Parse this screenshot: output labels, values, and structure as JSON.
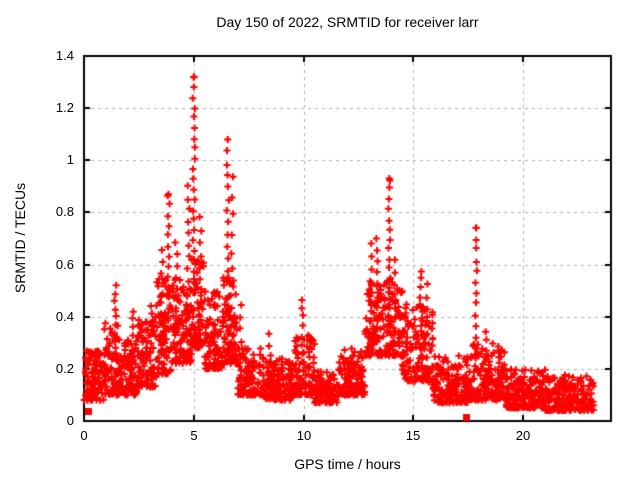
{
  "chart_data": {
    "type": "scatter",
    "title": "Day 150 of 2022, SRMTID for receiver larr",
    "xlabel": "GPS time / hours",
    "ylabel": "SRMTID / TECUs",
    "xlim": [
      0,
      24
    ],
    "ylim": [
      0,
      1.4
    ],
    "x_tick_values": [
      0,
      5,
      10,
      15,
      20
    ],
    "x_tick_labels": [
      "0",
      "5",
      "10",
      "15",
      "20"
    ],
    "y_tick_values": [
      0,
      0.2,
      0.4,
      0.6,
      0.8,
      1,
      1.2,
      1.4
    ],
    "y_tick_labels": [
      "0",
      "0.2",
      "0.4",
      "0.6",
      "0.8",
      "1",
      "1.2",
      "1.4"
    ],
    "grid": true,
    "legend": "none",
    "marker": "plus",
    "marker_color": "#ff0000",
    "grid_color": "#b0b0b0",
    "axis_color": "#000000",
    "background_color": "#ffffff",
    "seed": 7,
    "band_segments_format": "[x_start_hours, x_end_hours, y_low_TECUs, y_high_TECUs, n_points]",
    "band_segments": [
      [
        0.0,
        0.9,
        0.08,
        0.27,
        110
      ],
      [
        0.9,
        1.6,
        0.1,
        0.38,
        80
      ],
      [
        1.6,
        2.4,
        0.1,
        0.32,
        90
      ],
      [
        2.4,
        3.3,
        0.13,
        0.4,
        100
      ],
      [
        3.3,
        4.0,
        0.18,
        0.55,
        80
      ],
      [
        4.0,
        4.9,
        0.22,
        0.55,
        100
      ],
      [
        4.9,
        5.5,
        0.28,
        0.65,
        70
      ],
      [
        5.5,
        6.3,
        0.2,
        0.5,
        90
      ],
      [
        6.3,
        7.0,
        0.22,
        0.55,
        80
      ],
      [
        7.0,
        8.2,
        0.1,
        0.28,
        120
      ],
      [
        8.2,
        9.6,
        0.08,
        0.24,
        140
      ],
      [
        9.6,
        10.5,
        0.1,
        0.33,
        90
      ],
      [
        10.5,
        11.6,
        0.07,
        0.19,
        110
      ],
      [
        11.6,
        12.8,
        0.1,
        0.28,
        120
      ],
      [
        12.8,
        13.8,
        0.25,
        0.55,
        100
      ],
      [
        13.8,
        14.5,
        0.25,
        0.55,
        70
      ],
      [
        14.5,
        15.9,
        0.15,
        0.45,
        140
      ],
      [
        15.9,
        17.5,
        0.07,
        0.26,
        160
      ],
      [
        17.5,
        19.2,
        0.08,
        0.3,
        170
      ],
      [
        19.2,
        21.0,
        0.05,
        0.2,
        180
      ],
      [
        21.0,
        23.2,
        0.04,
        0.18,
        220
      ]
    ],
    "spike_columns_format": "[x_hours, y_base_TECUs, y_top_TECUs, n_points]",
    "spike_columns": [
      [
        1.42,
        0.25,
        0.52,
        10
      ],
      [
        2.2,
        0.2,
        0.42,
        8
      ],
      [
        3.05,
        0.2,
        0.44,
        8
      ],
      [
        3.55,
        0.3,
        0.65,
        10
      ],
      [
        3.85,
        0.35,
        0.87,
        14
      ],
      [
        4.2,
        0.3,
        0.68,
        10
      ],
      [
        4.75,
        0.4,
        0.9,
        12
      ],
      [
        5.0,
        0.5,
        1.32,
        22
      ],
      [
        5.3,
        0.35,
        0.78,
        10
      ],
      [
        6.55,
        0.3,
        1.08,
        18
      ],
      [
        6.75,
        0.3,
        0.93,
        10
      ],
      [
        7.15,
        0.2,
        0.45,
        6
      ],
      [
        8.45,
        0.15,
        0.33,
        6
      ],
      [
        9.95,
        0.15,
        0.47,
        10
      ],
      [
        13.05,
        0.25,
        0.68,
        10
      ],
      [
        13.35,
        0.3,
        0.7,
        10
      ],
      [
        13.9,
        0.35,
        0.93,
        16
      ],
      [
        14.15,
        0.3,
        0.62,
        8
      ],
      [
        15.35,
        0.25,
        0.58,
        10
      ],
      [
        15.65,
        0.2,
        0.52,
        8
      ],
      [
        17.85,
        0.28,
        0.74,
        12
      ],
      [
        18.3,
        0.15,
        0.35,
        6
      ]
    ],
    "peak_points": [
      [
        5.02,
        1.32
      ],
      [
        6.55,
        1.08
      ],
      [
        13.9,
        0.93
      ],
      [
        17.85,
        0.74
      ],
      [
        3.85,
        0.87
      ]
    ],
    "square_points_format": "[x_hours, y_TECUs] drawn as filled red squares on the x-axis",
    "square_points": [
      [
        0.2,
        0.04
      ],
      [
        17.4,
        0.015
      ]
    ]
  }
}
